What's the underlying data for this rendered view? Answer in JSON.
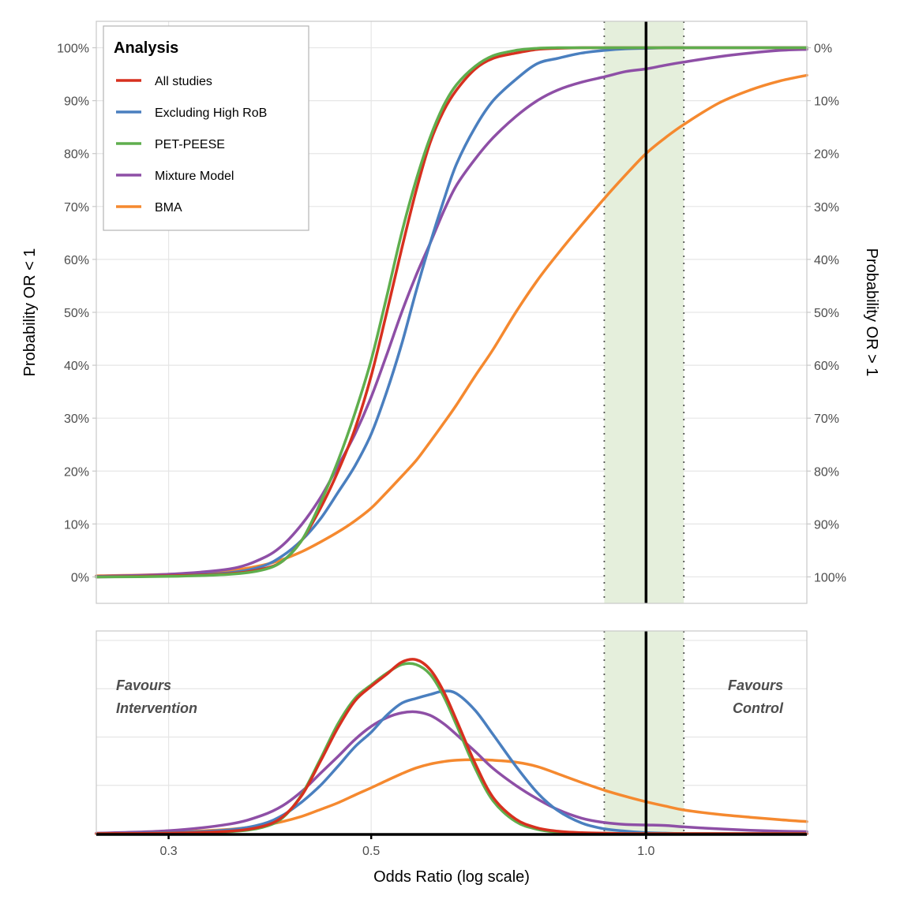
{
  "chart_data": [
    {
      "type": "line",
      "panel": "cumulative",
      "xlabel": "Odds Ratio (log scale)",
      "x_scale": "log",
      "xlim": [
        0.25,
        1.5
      ],
      "ylabel": "Probability OR < 1",
      "ylabel_right": "Probability OR > 1",
      "ylim": [
        -0.05,
        1.05
      ],
      "y_ticks": [
        0,
        0.1,
        0.2,
        0.3,
        0.4,
        0.5,
        0.6,
        0.7,
        0.8,
        0.9,
        1.0
      ],
      "y_tick_labels": [
        "0%",
        "10%",
        "20%",
        "30%",
        "40%",
        "50%",
        "60%",
        "70%",
        "80%",
        "90%",
        "100%"
      ],
      "y_tick_labels_right": [
        "100%",
        "90%",
        "80%",
        "70%",
        "60%",
        "50%",
        "40%",
        "30%",
        "20%",
        "10%",
        "0%"
      ],
      "grid": true,
      "reference_line": 1.0,
      "shaded_region": [
        0.9,
        1.1
      ],
      "legend": {
        "title": "Analysis",
        "position": "top-left",
        "entries": [
          "All studies",
          "Excluding High RoB",
          "PET-PEESE",
          "Mixture Model",
          "BMA"
        ]
      },
      "x": [
        0.25,
        0.3,
        0.35,
        0.38,
        0.4,
        0.42,
        0.44,
        0.46,
        0.48,
        0.5,
        0.52,
        0.54,
        0.56,
        0.58,
        0.6,
        0.62,
        0.65,
        0.68,
        0.72,
        0.76,
        0.8,
        0.85,
        0.9,
        0.95,
        1.0,
        1.05,
        1.1,
        1.2,
        1.3,
        1.4,
        1.5
      ],
      "series": [
        {
          "name": "All studies",
          "color": "#d7301f",
          "values": [
            0.0,
            0.002,
            0.006,
            0.015,
            0.03,
            0.07,
            0.13,
            0.2,
            0.28,
            0.38,
            0.5,
            0.62,
            0.73,
            0.82,
            0.88,
            0.92,
            0.96,
            0.98,
            0.99,
            0.997,
            0.999,
            1.0,
            1.0,
            1.0,
            1.0,
            1.0,
            1.0,
            1.0,
            1.0,
            1.0,
            1.0
          ]
        },
        {
          "name": "Excluding High RoB",
          "color": "#4a7fbf",
          "values": [
            0.0,
            0.002,
            0.008,
            0.02,
            0.04,
            0.07,
            0.11,
            0.16,
            0.21,
            0.27,
            0.35,
            0.44,
            0.54,
            0.63,
            0.71,
            0.78,
            0.85,
            0.9,
            0.94,
            0.97,
            0.98,
            0.99,
            0.995,
            0.998,
            0.999,
            1.0,
            1.0,
            1.0,
            1.0,
            1.0,
            1.0
          ]
        },
        {
          "name": "PET-PEESE",
          "color": "#5fae4d",
          "values": [
            0.0,
            0.001,
            0.005,
            0.013,
            0.03,
            0.07,
            0.14,
            0.22,
            0.31,
            0.41,
            0.53,
            0.65,
            0.75,
            0.83,
            0.89,
            0.93,
            0.965,
            0.985,
            0.995,
            0.999,
            1.0,
            1.0,
            1.0,
            1.0,
            1.0,
            1.0,
            1.0,
            1.0,
            1.0,
            1.0,
            1.0
          ]
        },
        {
          "name": "Mixture Model",
          "color": "#8e4fa6",
          "values": [
            0.001,
            0.005,
            0.015,
            0.035,
            0.06,
            0.1,
            0.15,
            0.21,
            0.27,
            0.34,
            0.42,
            0.5,
            0.57,
            0.63,
            0.69,
            0.74,
            0.79,
            0.83,
            0.87,
            0.9,
            0.92,
            0.935,
            0.945,
            0.955,
            0.96,
            0.967,
            0.973,
            0.983,
            0.99,
            0.995,
            0.997
          ]
        },
        {
          "name": "BMA",
          "color": "#f5892f",
          "values": [
            0.002,
            0.005,
            0.012,
            0.022,
            0.033,
            0.048,
            0.066,
            0.085,
            0.106,
            0.13,
            0.16,
            0.19,
            0.22,
            0.255,
            0.29,
            0.325,
            0.38,
            0.43,
            0.5,
            0.56,
            0.61,
            0.665,
            0.715,
            0.76,
            0.8,
            0.83,
            0.855,
            0.895,
            0.92,
            0.937,
            0.948
          ]
        }
      ]
    },
    {
      "type": "line",
      "panel": "density",
      "xlabel": "Odds Ratio (log scale)",
      "x_scale": "log",
      "xlim": [
        0.25,
        1.5
      ],
      "x_ticks": [
        0.3,
        0.5,
        1.0
      ],
      "x_tick_labels": [
        "0.3",
        "0.5",
        "1.0"
      ],
      "ylim": [
        0,
        4.0
      ],
      "y_gridlines": [
        1,
        2,
        3,
        4
      ],
      "grid": true,
      "reference_line": 1.0,
      "shaded_region": [
        0.9,
        1.1
      ],
      "annotations": [
        {
          "text": [
            "Favours",
            "Intervention"
          ],
          "position": "top-left"
        },
        {
          "text": [
            "Favours",
            "Control"
          ],
          "position": "top-right"
        }
      ],
      "x": [
        0.25,
        0.3,
        0.35,
        0.38,
        0.4,
        0.42,
        0.44,
        0.46,
        0.48,
        0.5,
        0.52,
        0.54,
        0.56,
        0.58,
        0.6,
        0.62,
        0.65,
        0.68,
        0.72,
        0.76,
        0.8,
        0.85,
        0.9,
        0.95,
        1.0,
        1.05,
        1.1,
        1.2,
        1.3,
        1.4,
        1.5
      ],
      "series": [
        {
          "name": "All studies",
          "color": "#d7301f",
          "values": [
            0.0,
            0.01,
            0.05,
            0.15,
            0.35,
            0.8,
            1.5,
            2.2,
            2.75,
            3.05,
            3.3,
            3.55,
            3.6,
            3.4,
            2.95,
            2.35,
            1.45,
            0.75,
            0.3,
            0.12,
            0.05,
            0.02,
            0.01,
            0.0,
            0.0,
            0.0,
            0.0,
            0.0,
            0.0,
            0.0,
            0.0
          ]
        },
        {
          "name": "Excluding High RoB",
          "color": "#4a7fbf",
          "values": [
            0.0,
            0.02,
            0.08,
            0.2,
            0.38,
            0.66,
            1.0,
            1.4,
            1.8,
            2.1,
            2.45,
            2.7,
            2.8,
            2.88,
            2.95,
            2.9,
            2.55,
            2.05,
            1.4,
            0.85,
            0.48,
            0.22,
            0.1,
            0.05,
            0.02,
            0.01,
            0.0,
            0.0,
            0.0,
            0.0,
            0.0
          ]
        },
        {
          "name": "PET-PEESE",
          "color": "#5fae4d",
          "values": [
            0.0,
            0.01,
            0.04,
            0.13,
            0.33,
            0.82,
            1.55,
            2.28,
            2.8,
            3.08,
            3.32,
            3.5,
            3.5,
            3.3,
            2.85,
            2.25,
            1.35,
            0.68,
            0.25,
            0.09,
            0.03,
            0.01,
            0.0,
            0.0,
            0.0,
            0.0,
            0.0,
            0.0,
            0.0,
            0.0,
            0.0
          ]
        },
        {
          "name": "Mixture Model",
          "color": "#8e4fa6",
          "values": [
            0.01,
            0.06,
            0.2,
            0.38,
            0.58,
            0.88,
            1.25,
            1.6,
            1.95,
            2.22,
            2.4,
            2.5,
            2.52,
            2.45,
            2.28,
            2.05,
            1.7,
            1.35,
            1.0,
            0.72,
            0.5,
            0.32,
            0.23,
            0.19,
            0.18,
            0.17,
            0.14,
            0.1,
            0.07,
            0.05,
            0.04
          ]
        },
        {
          "name": "BMA",
          "color": "#f5892f",
          "values": [
            0.0,
            0.03,
            0.09,
            0.17,
            0.25,
            0.36,
            0.5,
            0.64,
            0.8,
            0.95,
            1.1,
            1.24,
            1.36,
            1.44,
            1.49,
            1.52,
            1.53,
            1.52,
            1.48,
            1.39,
            1.24,
            1.06,
            0.9,
            0.77,
            0.66,
            0.57,
            0.49,
            0.4,
            0.34,
            0.29,
            0.25
          ]
        }
      ]
    }
  ]
}
